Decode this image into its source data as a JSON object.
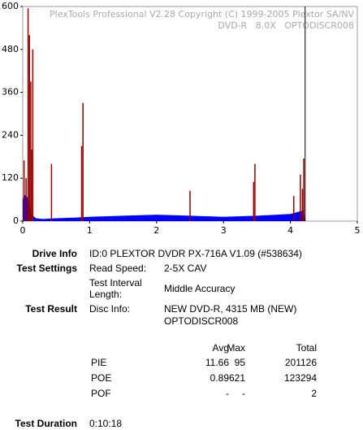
{
  "chart_data": {
    "type": "spikes",
    "title": "PlexTools Professional V2.28 Copyright (C) 1999-2005 Plextor SA/NV",
    "subtitle": "DVD-R   8.0X   OPTODISCR008",
    "xlim": [
      0,
      5
    ],
    "xticks": [
      0,
      1,
      2,
      3,
      4,
      5
    ],
    "ylim": [
      0,
      600
    ],
    "yticks": [
      0,
      120,
      240,
      360,
      480,
      600
    ],
    "end_line_x": 4.22,
    "series": [
      {
        "color": "#0000ff",
        "x": [
          0,
          0.02,
          0.05,
          0.08,
          0.1,
          0.12,
          0.15,
          0.2,
          0.3,
          0.5,
          0.8,
          1.0,
          1.5,
          2.0,
          2.5,
          3.0,
          3.5,
          3.8,
          4.0,
          4.1,
          4.2,
          4.22
        ],
        "values": [
          60,
          75,
          70,
          65,
          50,
          30,
          15,
          8,
          6,
          8,
          10,
          12,
          15,
          18,
          15,
          12,
          15,
          18,
          20,
          25,
          30,
          0
        ]
      },
      {
        "color": "#990000",
        "x": [
          0.02,
          0.05,
          0.08,
          0.1,
          0.12,
          0.13,
          0.15,
          0.43,
          0.88,
          0.9,
          2.5,
          3.45,
          3.47,
          4.05,
          4.15,
          4.18,
          4.2
        ],
        "values": [
          170,
          120,
          595,
          520,
          390,
          200,
          480,
          160,
          210,
          330,
          85,
          110,
          160,
          70,
          130,
          90,
          175
        ]
      }
    ]
  },
  "info": {
    "drive_label": "Drive Info",
    "drive": "ID:0 PLEXTOR DVDR PX-716A V1.09 (#538634)",
    "settings_label": "Test Settings",
    "speed_label": "Read Speed:",
    "speed": "2-5X CAV",
    "interval_label": "Test Interval Length:",
    "interval": "Middle Accuracy",
    "result_label": "Test Result",
    "disc_label": "Disc Info:",
    "disc_line1": "NEW DVD-R, 4315 MB (NEW)",
    "disc_line2": "OPTODISCR008",
    "table": {
      "header": [
        "Avg",
        "Max",
        "Total"
      ],
      "rows": [
        [
          "PIE",
          "11.66",
          "95",
          "201126"
        ],
        [
          "POE",
          "0.89",
          "621",
          "123294"
        ],
        [
          "POF",
          "-",
          "-",
          "2"
        ]
      ]
    },
    "duration_label": "Test Duration",
    "duration": "0:10:18"
  }
}
